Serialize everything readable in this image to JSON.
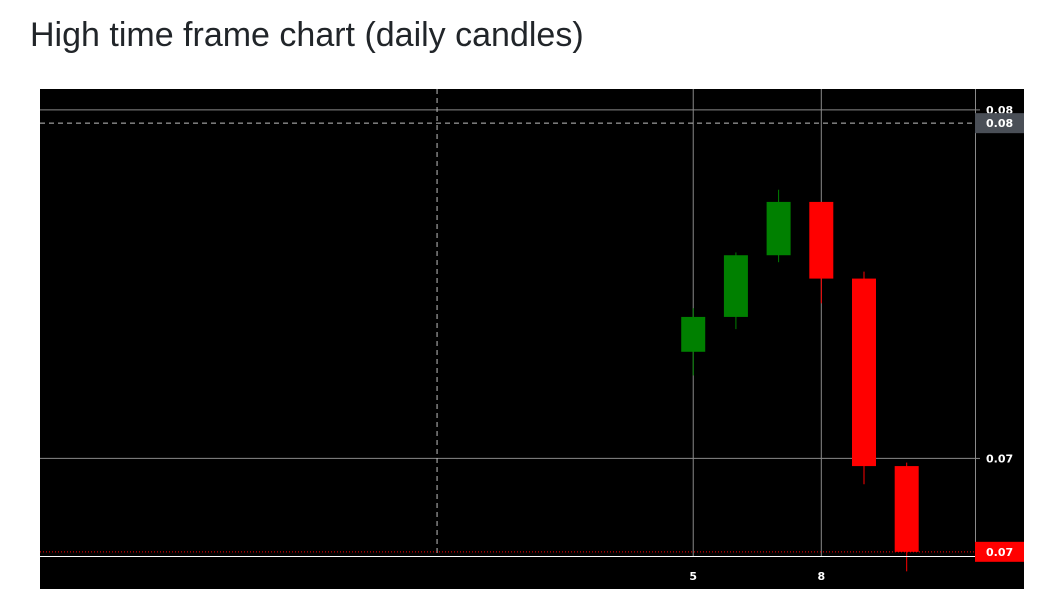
{
  "page": {
    "title": "High time frame chart (daily candles)"
  },
  "chart_data": {
    "type": "candlestick",
    "title": "",
    "theme": {
      "background": "#000000",
      "grid": "#8a8a8a",
      "up_color": "#008000",
      "down_color": "#ff0000",
      "text": "#ffffff",
      "crosshair_label_bg": "#4a4f57",
      "last_price_color": "#ff0000"
    },
    "ylim": [
      0.0672,
      0.0806
    ],
    "y_ticks": [
      {
        "value": 0.08,
        "label": "0.08"
      },
      {
        "value": 0.07,
        "label": "0.07"
      }
    ],
    "x_ticks": [
      {
        "day": 5,
        "label": "5"
      },
      {
        "day": 8,
        "label": "8"
      }
    ],
    "xlim": [
      -10.3,
      11.6
    ],
    "candles": [
      {
        "day": 5,
        "open": 0.07306,
        "high": 0.07431,
        "low": 0.07238,
        "close": 0.07406
      },
      {
        "day": 6,
        "open": 0.07406,
        "high": 0.07591,
        "low": 0.07371,
        "close": 0.07583
      },
      {
        "day": 7,
        "open": 0.07583,
        "high": 0.07771,
        "low": 0.07563,
        "close": 0.07736
      },
      {
        "day": 8,
        "open": 0.07736,
        "high": 0.07736,
        "low": 0.07445,
        "close": 0.07516
      },
      {
        "day": 9,
        "open": 0.07516,
        "high": 0.07536,
        "low": 0.06926,
        "close": 0.06978
      },
      {
        "day": 10,
        "open": 0.06978,
        "high": 0.06988,
        "low": 0.06676,
        "close": 0.06732
      }
    ],
    "crosshair": {
      "day": -1,
      "price": 0.07962,
      "label": "0.08"
    },
    "last_price": {
      "price": 0.06732,
      "label": "0.07"
    }
  }
}
